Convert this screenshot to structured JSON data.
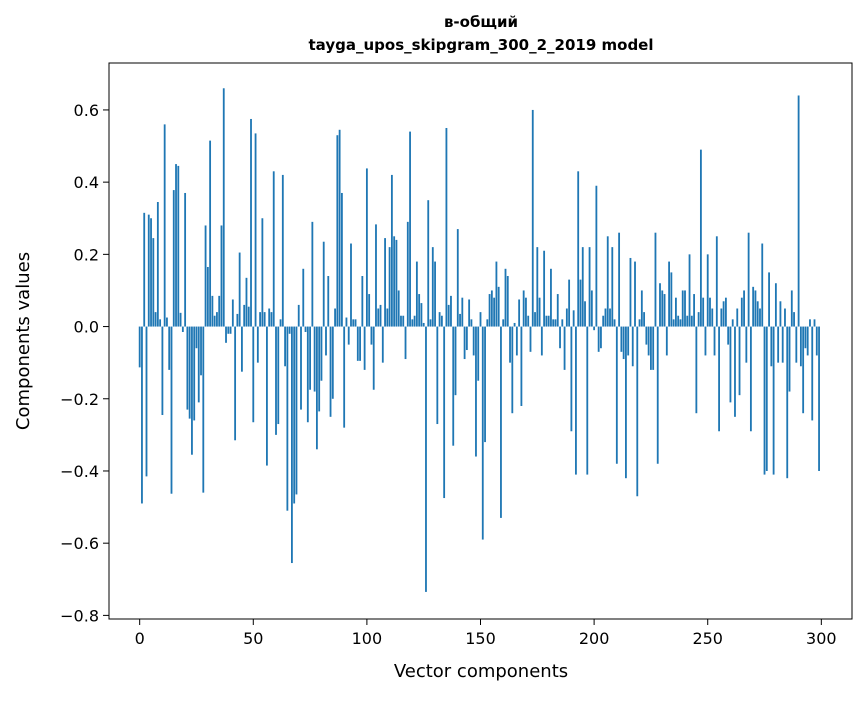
{
  "chart_data": {
    "type": "bar",
    "title": "в-общий",
    "subtitle": "tayga_upos_skipgram_300_2_2019 model",
    "xlabel": "Vector components",
    "ylabel": "Components values",
    "xlim": [
      -13.5,
      313.5
    ],
    "ylim": [
      -0.81,
      0.73
    ],
    "xticks": [
      0,
      50,
      100,
      150,
      200,
      250,
      300
    ],
    "xtick_labels": [
      "0",
      "50",
      "100",
      "150",
      "200",
      "250",
      "300"
    ],
    "yticks": [
      -0.8,
      -0.6,
      -0.4,
      -0.2,
      0.0,
      0.2,
      0.4,
      0.6
    ],
    "ytick_labels": [
      "−0.8",
      "−0.6",
      "−0.4",
      "−0.2",
      "0.0",
      "0.2",
      "0.4",
      "0.6"
    ],
    "grid": false,
    "bar_color": "#1f77b4",
    "values": [
      -0.113,
      -0.49,
      0.315,
      -0.415,
      0.31,
      0.3,
      0.245,
      0.04,
      0.345,
      0.02,
      -0.245,
      0.56,
      0.025,
      -0.12,
      -0.463,
      0.378,
      0.45,
      0.445,
      0.038,
      -0.015,
      0.37,
      -0.23,
      -0.255,
      -0.355,
      -0.26,
      -0.06,
      -0.21,
      -0.135,
      -0.46,
      0.28,
      0.165,
      0.515,
      0.085,
      0.03,
      0.04,
      0.085,
      0.28,
      0.66,
      -0.045,
      -0.02,
      -0.02,
      0.075,
      -0.315,
      0.035,
      0.205,
      -0.125,
      0.06,
      0.135,
      0.055,
      0.575,
      -0.265,
      0.535,
      -0.1,
      0.04,
      0.3,
      0.04,
      -0.385,
      0.05,
      0.04,
      0.43,
      -0.3,
      -0.27,
      0.02,
      0.42,
      -0.11,
      -0.51,
      -0.02,
      -0.655,
      -0.49,
      -0.465,
      0.06,
      -0.23,
      0.16,
      -0.015,
      -0.265,
      -0.175,
      0.29,
      -0.18,
      -0.34,
      -0.235,
      -0.15,
      0.235,
      -0.08,
      0.14,
      -0.25,
      -0.2,
      0.05,
      0.53,
      0.545,
      0.37,
      -0.28,
      0.025,
      -0.05,
      0.23,
      0.02,
      0.02,
      -0.095,
      -0.095,
      0.14,
      -0.12,
      0.438,
      0.09,
      -0.05,
      -0.175,
      0.283,
      0.05,
      0.06,
      -0.1,
      0.245,
      0.05,
      0.22,
      0.42,
      0.25,
      0.24,
      0.1,
      0.03,
      0.03,
      -0.09,
      0.29,
      0.54,
      0.02,
      0.03,
      0.18,
      0.09,
      0.065,
      0.01,
      -0.735,
      0.35,
      0.02,
      0.22,
      0.18,
      -0.27,
      0.04,
      0.03,
      -0.475,
      0.55,
      0.06,
      0.085,
      -0.33,
      -0.19,
      0.27,
      0.035,
      0.08,
      -0.09,
      -0.065,
      0.075,
      0.02,
      -0.08,
      -0.36,
      -0.15,
      0.04,
      -0.59,
      -0.32,
      0.02,
      0.09,
      0.1,
      0.08,
      0.18,
      0.11,
      -0.53,
      0.02,
      0.16,
      0.14,
      -0.1,
      -0.24,
      0.01,
      -0.08,
      0.075,
      -0.22,
      0.1,
      0.08,
      0.03,
      -0.07,
      0.6,
      0.04,
      0.22,
      0.08,
      -0.08,
      0.21,
      0.03,
      0.03,
      0.16,
      0.02,
      0.02,
      0.09,
      -0.06,
      0.02,
      -0.12,
      0.05,
      0.13,
      -0.29,
      0.045,
      -0.41,
      0.43,
      0.13,
      0.22,
      0.07,
      -0.41,
      0.22,
      0.1,
      -0.01,
      0.39,
      -0.07,
      -0.06,
      0.03,
      0.05,
      0.25,
      0.05,
      0.22,
      0.02,
      -0.38,
      0.26,
      -0.07,
      -0.09,
      -0.42,
      -0.08,
      0.19,
      -0.11,
      0.18,
      -0.47,
      0.02,
      0.1,
      0.04,
      -0.05,
      -0.08,
      -0.12,
      -0.12,
      0.26,
      -0.38,
      0.12,
      0.1,
      0.09,
      -0.08,
      0.18,
      0.15,
      0.02,
      0.08,
      0.03,
      0.02,
      0.1,
      0.1,
      0.03,
      0.2,
      0.03,
      0.09,
      -0.24,
      0.04,
      0.49,
      0.08,
      -0.08,
      0.2,
      0.08,
      0.05,
      -0.08,
      0.25,
      -0.29,
      0.05,
      0.07,
      0.08,
      -0.05,
      -0.21,
      0.02,
      -0.25,
      0.05,
      -0.19,
      0.08,
      0.1,
      -0.1,
      0.26,
      -0.29,
      0.11,
      0.1,
      0.07,
      0.05,
      0.23,
      -0.41,
      -0.4,
      0.15,
      -0.11,
      -0.41,
      0.12,
      -0.1,
      0.07,
      -0.1,
      0.05,
      -0.42,
      -0.18,
      0.1,
      0.04,
      -0.1,
      0.64,
      -0.11,
      -0.24,
      -0.06,
      -0.08,
      0.02,
      -0.26,
      0.02,
      -0.08,
      -0.4
    ]
  }
}
